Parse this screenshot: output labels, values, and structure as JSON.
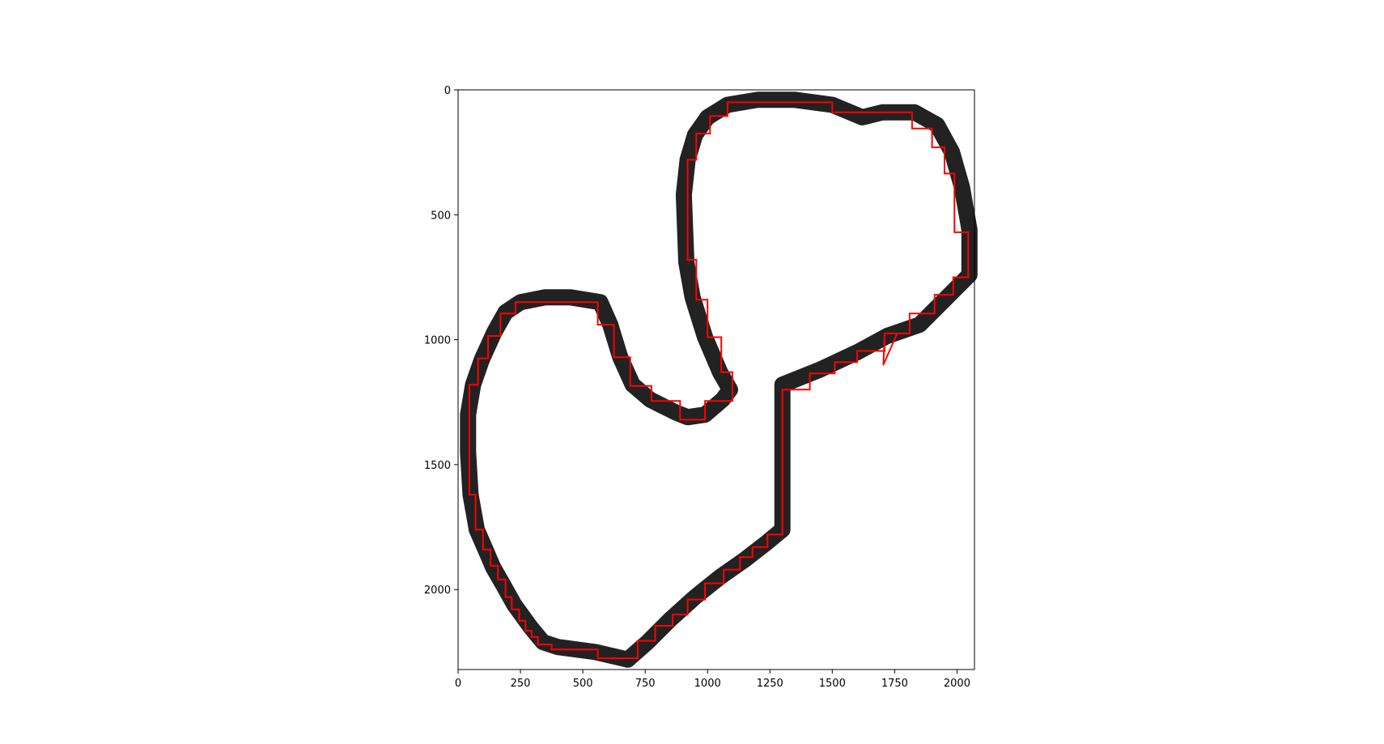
{
  "chart_data": {
    "type": "line",
    "title": "",
    "xlabel": "",
    "ylabel": "",
    "xlim": [
      0,
      2070
    ],
    "ylim": [
      2320,
      0
    ],
    "y_inverted": true,
    "grid": false,
    "xticks": [
      0,
      250,
      500,
      750,
      1000,
      1250,
      1500,
      1750,
      2000
    ],
    "yticks": [
      0,
      500,
      1000,
      1500,
      2000
    ],
    "xtick_labels": [
      "0",
      "250",
      "500",
      "750",
      "1000",
      "1250",
      "1500",
      "1750",
      "2000"
    ],
    "ytick_labels": [
      "0",
      "500",
      "1000",
      "1500",
      "2000"
    ],
    "colors": {
      "track": "#222222",
      "path": "#ff0000",
      "frame": "#000000"
    },
    "series": [
      {
        "kind": "track-outline",
        "points": [
          [
            1300,
            1180
          ],
          [
            1450,
            1120
          ],
          [
            1600,
            1050
          ],
          [
            1720,
            985
          ],
          [
            1850,
            940
          ],
          [
            1960,
            830
          ],
          [
            2050,
            740
          ],
          [
            2050,
            560
          ],
          [
            2020,
            390
          ],
          [
            1980,
            250
          ],
          [
            1920,
            140
          ],
          [
            1830,
            90
          ],
          [
            1700,
            90
          ],
          [
            1620,
            110
          ],
          [
            1500,
            60
          ],
          [
            1350,
            40
          ],
          [
            1200,
            40
          ],
          [
            1080,
            60
          ],
          [
            1000,
            110
          ],
          [
            950,
            180
          ],
          [
            920,
            280
          ],
          [
            905,
            420
          ],
          [
            910,
            560
          ],
          [
            915,
            690
          ],
          [
            940,
            830
          ],
          [
            990,
            990
          ],
          [
            1050,
            1130
          ],
          [
            1090,
            1200
          ],
          [
            1060,
            1240
          ],
          [
            990,
            1300
          ],
          [
            920,
            1310
          ],
          [
            870,
            1290
          ],
          [
            770,
            1240
          ],
          [
            700,
            1180
          ],
          [
            650,
            1070
          ],
          [
            610,
            940
          ],
          [
            570,
            850
          ],
          [
            450,
            830
          ],
          [
            350,
            830
          ],
          [
            250,
            850
          ],
          [
            190,
            890
          ],
          [
            145,
            970
          ],
          [
            95,
            1080
          ],
          [
            60,
            1180
          ],
          [
            40,
            1300
          ],
          [
            40,
            1450
          ],
          [
            50,
            1620
          ],
          [
            75,
            1760
          ],
          [
            110,
            1840
          ],
          [
            140,
            1910
          ],
          [
            180,
            1980
          ],
          [
            225,
            2060
          ],
          [
            290,
            2150
          ],
          [
            340,
            2210
          ],
          [
            400,
            2230
          ],
          [
            550,
            2250
          ],
          [
            680,
            2280
          ],
          [
            760,
            2210
          ],
          [
            850,
            2120
          ],
          [
            950,
            2030
          ],
          [
            1050,
            1950
          ],
          [
            1150,
            1880
          ],
          [
            1240,
            1810
          ],
          [
            1300,
            1760
          ],
          [
            1300,
            1600
          ],
          [
            1300,
            1450
          ],
          [
            1300,
            1320
          ],
          [
            1300,
            1180
          ]
        ]
      },
      {
        "kind": "red-path",
        "points": [
          [
            1300,
            1200
          ],
          [
            1410,
            1200
          ],
          [
            1410,
            1135
          ],
          [
            1510,
            1135
          ],
          [
            1510,
            1090
          ],
          [
            1600,
            1090
          ],
          [
            1600,
            1045
          ],
          [
            1710,
            1045
          ],
          [
            1710,
            975
          ],
          [
            1810,
            975
          ],
          [
            1810,
            895
          ],
          [
            1910,
            895
          ],
          [
            1910,
            820
          ],
          [
            1985,
            820
          ],
          [
            1985,
            750
          ],
          [
            2045,
            750
          ],
          [
            2045,
            570
          ],
          [
            1990,
            570
          ],
          [
            1990,
            335
          ],
          [
            1950,
            335
          ],
          [
            1950,
            230
          ],
          [
            1900,
            230
          ],
          [
            1900,
            155
          ],
          [
            1820,
            155
          ],
          [
            1820,
            90
          ],
          [
            1500,
            90
          ],
          [
            1500,
            50
          ],
          [
            1080,
            50
          ],
          [
            1080,
            105
          ],
          [
            1010,
            105
          ],
          [
            1010,
            175
          ],
          [
            955,
            175
          ],
          [
            955,
            280
          ],
          [
            920,
            280
          ],
          [
            920,
            680
          ],
          [
            955,
            680
          ],
          [
            955,
            840
          ],
          [
            1000,
            840
          ],
          [
            1000,
            990
          ],
          [
            1055,
            990
          ],
          [
            1055,
            1130
          ],
          [
            1100,
            1130
          ],
          [
            1100,
            1245
          ],
          [
            990,
            1245
          ],
          [
            990,
            1320
          ],
          [
            890,
            1320
          ],
          [
            890,
            1245
          ],
          [
            775,
            1245
          ],
          [
            775,
            1185
          ],
          [
            690,
            1185
          ],
          [
            690,
            1070
          ],
          [
            625,
            1070
          ],
          [
            625,
            940
          ],
          [
            560,
            940
          ],
          [
            560,
            850
          ],
          [
            230,
            850
          ],
          [
            230,
            895
          ],
          [
            170,
            895
          ],
          [
            170,
            985
          ],
          [
            120,
            985
          ],
          [
            120,
            1075
          ],
          [
            80,
            1075
          ],
          [
            80,
            1180
          ],
          [
            45,
            1180
          ],
          [
            45,
            1620
          ],
          [
            70,
            1620
          ],
          [
            70,
            1760
          ],
          [
            100,
            1760
          ],
          [
            100,
            1840
          ],
          [
            130,
            1840
          ],
          [
            130,
            1905
          ],
          [
            160,
            1905
          ],
          [
            160,
            1960
          ],
          [
            190,
            1960
          ],
          [
            190,
            2030
          ],
          [
            215,
            2030
          ],
          [
            215,
            2080
          ],
          [
            245,
            2080
          ],
          [
            245,
            2125
          ],
          [
            270,
            2125
          ],
          [
            270,
            2165
          ],
          [
            295,
            2165
          ],
          [
            295,
            2190
          ],
          [
            320,
            2190
          ],
          [
            320,
            2220
          ],
          [
            375,
            2220
          ],
          [
            375,
            2240
          ],
          [
            560,
            2240
          ],
          [
            560,
            2275
          ],
          [
            720,
            2275
          ],
          [
            720,
            2205
          ],
          [
            790,
            2205
          ],
          [
            790,
            2145
          ],
          [
            860,
            2145
          ],
          [
            860,
            2100
          ],
          [
            920,
            2100
          ],
          [
            920,
            2040
          ],
          [
            990,
            2040
          ],
          [
            990,
            1975
          ],
          [
            1065,
            1975
          ],
          [
            1065,
            1920
          ],
          [
            1130,
            1920
          ],
          [
            1130,
            1870
          ],
          [
            1180,
            1870
          ],
          [
            1180,
            1830
          ],
          [
            1240,
            1830
          ],
          [
            1240,
            1780
          ],
          [
            1300,
            1780
          ],
          [
            1300,
            1200
          ]
        ]
      },
      {
        "kind": "red-spike",
        "points": [
          [
            1710,
            975
          ],
          [
            1705,
            1100
          ],
          [
            1760,
            975
          ]
        ]
      }
    ]
  }
}
